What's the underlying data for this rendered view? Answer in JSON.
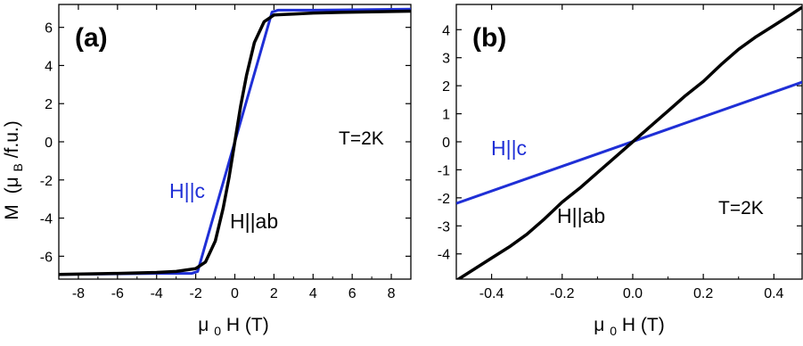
{
  "figure": {
    "y_axis_label_main": "M",
    "y_axis_label_open": "(μ",
    "y_axis_label_sub": "B",
    "y_axis_label_close": "/f.u.)",
    "x_axis_label_main": "μ",
    "x_axis_label_sub": "0",
    "x_axis_label_rest": "H  (T)"
  },
  "chart_data": [
    {
      "type": "line",
      "panel_label": "(a)",
      "temperature_label": "T=2K",
      "xlim": [
        -9,
        9
      ],
      "ylim": [
        -7.2,
        7.2
      ],
      "xticks": [
        -8,
        -6,
        -4,
        -2,
        0,
        2,
        4,
        6,
        8
      ],
      "yticks": [
        -6,
        -4,
        -2,
        0,
        2,
        4,
        6
      ],
      "x_tick_labels": [
        "-8",
        "-6",
        "-4",
        "-2",
        "0",
        "2",
        "4",
        "6",
        "8"
      ],
      "y_tick_labels": [
        "-6",
        "-4",
        "-2",
        "0",
        "2",
        "4",
        "6"
      ],
      "series": [
        {
          "name": "H||c",
          "color": "#1f2fd6",
          "x": [
            -9,
            -4,
            -2.2,
            -1.9,
            0,
            1.9,
            2.2,
            4,
            9
          ],
          "y": [
            -6.95,
            -6.9,
            -6.9,
            -6.8,
            0,
            6.8,
            6.9,
            6.9,
            6.95
          ]
        },
        {
          "name": "H||ab",
          "color": "#000000",
          "x": [
            -9,
            -6,
            -4,
            -3,
            -2,
            -1.5,
            -1.0,
            -0.6,
            -0.3,
            0,
            0.3,
            0.6,
            1.0,
            1.5,
            2,
            3,
            4,
            6,
            9
          ],
          "y": [
            -6.95,
            -6.9,
            -6.85,
            -6.8,
            -6.65,
            -6.3,
            -5.2,
            -3.5,
            -1.9,
            0,
            1.9,
            3.5,
            5.2,
            6.3,
            6.65,
            6.7,
            6.75,
            6.8,
            6.85
          ]
        }
      ]
    },
    {
      "type": "line",
      "panel_label": "(b)",
      "temperature_label": "T=2K",
      "xlim": [
        -0.5,
        0.48
      ],
      "ylim": [
        -4.9,
        4.9
      ],
      "xticks": [
        -0.4,
        -0.2,
        0.0,
        0.2,
        0.4
      ],
      "yticks": [
        -4,
        -3,
        -2,
        -1,
        0,
        1,
        2,
        3,
        4
      ],
      "x_tick_labels": [
        "-0.4",
        "-0.2",
        "0.0",
        "0.2",
        "0.4"
      ],
      "y_tick_labels": [
        "-4",
        "-3",
        "-2",
        "-1",
        "0",
        "1",
        "2",
        "3",
        "4"
      ],
      "series": [
        {
          "name": "H||c",
          "color": "#1f2fd6",
          "x": [
            -0.5,
            0.48
          ],
          "y": [
            -2.2,
            2.13
          ]
        },
        {
          "name": "H||ab",
          "color": "#000000",
          "x": [
            -0.5,
            -0.45,
            -0.4,
            -0.35,
            -0.3,
            -0.25,
            -0.2,
            -0.15,
            -0.1,
            -0.05,
            0,
            0.05,
            0.1,
            0.15,
            0.2,
            0.25,
            0.3,
            0.35,
            0.4,
            0.45,
            0.48
          ],
          "y": [
            -4.95,
            -4.55,
            -4.15,
            -3.75,
            -3.3,
            -2.75,
            -2.15,
            -1.65,
            -1.1,
            -0.55,
            0,
            0.55,
            1.1,
            1.65,
            2.15,
            2.75,
            3.3,
            3.75,
            4.15,
            4.55,
            4.8
          ]
        }
      ]
    }
  ]
}
